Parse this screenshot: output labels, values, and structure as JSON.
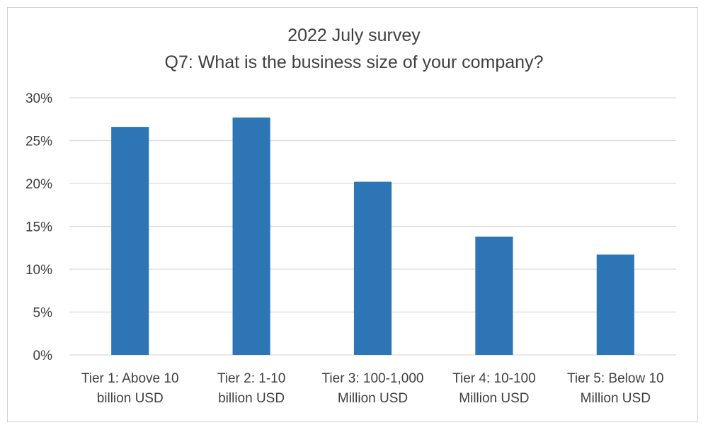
{
  "chart_data": {
    "type": "bar",
    "title": "2022 July survey",
    "subtitle": "Q7: What is the business size of your company?",
    "categories": [
      [
        "Tier 1: Above 10",
        "billion USD"
      ],
      [
        "Tier 2: 1-10",
        "billion USD"
      ],
      [
        "Tier 3: 100-1,000",
        "Million USD"
      ],
      [
        "Tier 4: 10-100",
        "Million USD"
      ],
      [
        "Tier 5: Below 10",
        "Million USD"
      ]
    ],
    "values": [
      26.6,
      27.7,
      20.2,
      13.8,
      11.7
    ],
    "ylim": [
      0,
      30
    ],
    "y_ticks": [
      0,
      5,
      10,
      15,
      20,
      25,
      30
    ],
    "y_tick_labels": [
      "0%",
      "5%",
      "10%",
      "15%",
      "20%",
      "25%",
      "30%"
    ],
    "xlabel": "",
    "ylabel": "",
    "grid": true,
    "legend": "none",
    "colors": {
      "bar": "#2e75b6",
      "grid": "#d9d9d9",
      "text": "#404040"
    }
  }
}
